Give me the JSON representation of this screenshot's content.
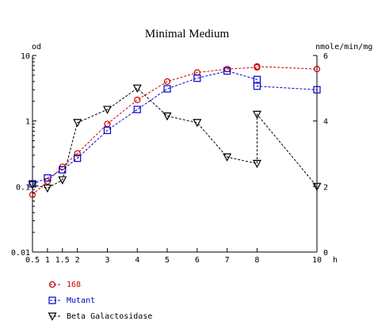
{
  "chart_data": {
    "type": "line",
    "title": "Minimal Medium",
    "xlabel": "h",
    "ylabel_left": "od",
    "ylabel_right": "nmole/min/mg",
    "x_ticks": [
      0.5,
      1,
      1.5,
      2,
      3,
      4,
      5,
      6,
      7,
      8,
      10
    ],
    "x_tick_labels": [
      "0.5",
      "1",
      "1.5",
      "2",
      "3",
      "4",
      "5",
      "6",
      "7",
      "8",
      "10"
    ],
    "xlim": [
      0.5,
      10
    ],
    "y_left": {
      "scale": "log",
      "lim": [
        0.01,
        10
      ],
      "tick_labels": [
        "0.01",
        "0.1",
        "1",
        "10"
      ],
      "ticks": [
        0.01,
        0.1,
        1,
        10
      ]
    },
    "y_right": {
      "scale": "linear",
      "lim": [
        0,
        6
      ],
      "tick_labels": [
        "0",
        "2",
        "4",
        "6"
      ],
      "ticks": [
        0,
        2,
        4,
        6
      ]
    },
    "series": [
      {
        "name": "168",
        "axis": "left",
        "color": "#cc0000",
        "marker": "circle",
        "x": [
          0.5,
          1,
          1.5,
          2,
          3,
          4,
          5,
          6,
          7,
          8,
          8,
          10
        ],
        "y": [
          0.075,
          0.12,
          0.2,
          0.32,
          0.9,
          2.1,
          4.0,
          5.5,
          6.2,
          6.6,
          6.8,
          6.2
        ]
      },
      {
        "name": "Mutant",
        "axis": "left",
        "color": "#0000cc",
        "marker": "square",
        "x": [
          0.5,
          1,
          1.5,
          2,
          3,
          4,
          5,
          6,
          7,
          8,
          8,
          10
        ],
        "y": [
          0.11,
          0.135,
          0.18,
          0.27,
          0.72,
          1.5,
          3.1,
          4.5,
          5.8,
          4.3,
          3.4,
          3.0
        ]
      },
      {
        "name": "Beta Galactosidase",
        "axis": "right",
        "color": "#000000",
        "marker": "triangle-down",
        "x": [
          0.5,
          1,
          1.5,
          2,
          3,
          4,
          5,
          6,
          7,
          8,
          8,
          10
        ],
        "y": [
          2.05,
          1.95,
          2.2,
          3.95,
          4.35,
          5.0,
          4.15,
          3.95,
          2.9,
          2.7,
          4.2,
          2.0
        ]
      }
    ],
    "legend_placement": "bottom-left",
    "grid": false
  }
}
